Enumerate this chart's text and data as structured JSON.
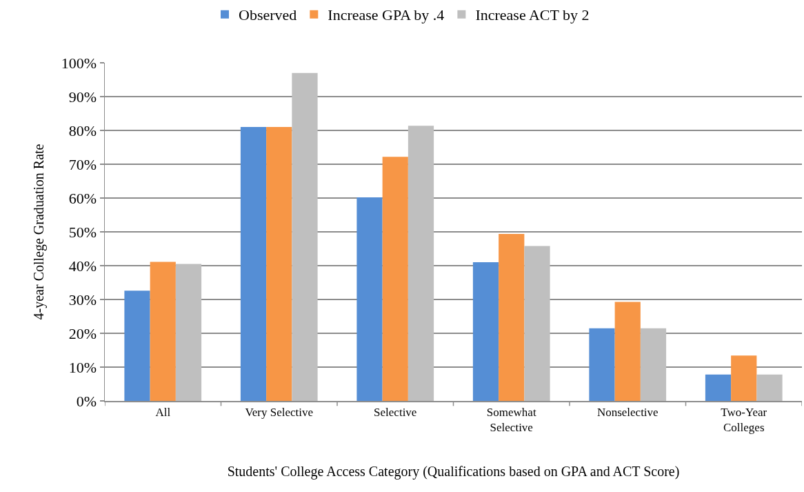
{
  "chart_data": {
    "type": "bar",
    "xlabel": "Students' College Access Category (Qualifications based on GPA and ACT Score)",
    "ylabel": "4-year College Graduation Rate",
    "categories": [
      "All",
      "Very Selective",
      "Selective",
      "Somewhat Selective",
      "Nonselective",
      "Two-Year Colleges"
    ],
    "series": [
      {
        "name": "Observed",
        "color": "#558ed5",
        "values": [
          32.6,
          81.0,
          60.2,
          41.0,
          21.5,
          7.8
        ]
      },
      {
        "name": "Increase GPA by .4",
        "color": "#f79646",
        "values": [
          41.1,
          81.0,
          72.2,
          49.4,
          29.3,
          13.4
        ]
      },
      {
        "name": "Increase ACT by 2",
        "color": "#bfbfbf",
        "values": [
          40.5,
          97.0,
          81.4,
          45.8,
          21.5,
          7.8
        ]
      }
    ],
    "ylim": [
      0,
      100
    ],
    "yticks": [
      {
        "value": 0,
        "label": "0%"
      },
      {
        "value": 10,
        "label": "10%"
      },
      {
        "value": 20,
        "label": "20%"
      },
      {
        "value": 30,
        "label": "30%"
      },
      {
        "value": 40,
        "label": "40%"
      },
      {
        "value": 50,
        "label": "50%"
      },
      {
        "value": 60,
        "label": "60%"
      },
      {
        "value": 70,
        "label": "70%"
      },
      {
        "value": 80,
        "label": "80%"
      },
      {
        "value": 90,
        "label": "90%"
      },
      {
        "value": 100,
        "label": "100%"
      }
    ],
    "grid": "y",
    "legend": "top"
  }
}
